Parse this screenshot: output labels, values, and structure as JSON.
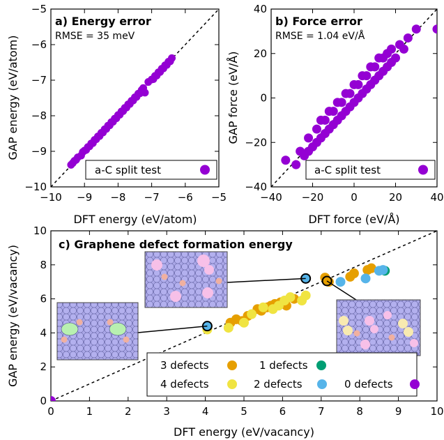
{
  "chart_data": [
    {
      "type": "scatter",
      "title": "a) Energy error",
      "annotation": "RMSE = 35 meV",
      "xlabel": "DFT energy (eV/atom)",
      "ylabel": "GAP energy (eV/atom)",
      "xlim": [
        -10,
        -5
      ],
      "ylim": [
        -10,
        -5
      ],
      "xticks": [
        "−10",
        "−9",
        "−8",
        "−7",
        "−6",
        "−5"
      ],
      "yticks": [
        "−10",
        "−9",
        "−8",
        "−7",
        "−6",
        "−5"
      ],
      "diagonal": true,
      "legend": "bottom-right",
      "series": [
        {
          "name": "a-C split test",
          "color": "#9400d3",
          "x": [
            -9.4,
            -9.35,
            -9.3,
            -9.25,
            -9.2,
            -9.1,
            -9.05,
            -9.0,
            -8.95,
            -8.9,
            -8.85,
            -8.8,
            -8.75,
            -8.7,
            -8.65,
            -8.6,
            -8.55,
            -8.5,
            -8.45,
            -8.4,
            -8.35,
            -8.3,
            -8.25,
            -8.2,
            -8.15,
            -8.1,
            -8.05,
            -8.0,
            -7.95,
            -7.9,
            -7.85,
            -7.8,
            -7.75,
            -7.7,
            -7.65,
            -7.6,
            -7.55,
            -7.5,
            -7.45,
            -7.4,
            -7.35,
            -7.3,
            -7.25,
            -7.2,
            -7.1,
            -7.0,
            -6.95,
            -6.9,
            -6.85,
            -6.8,
            -6.75,
            -6.7,
            -6.65,
            -6.6,
            -6.55,
            -6.5,
            -6.45,
            -6.4
          ],
          "y": [
            -9.38,
            -9.33,
            -9.27,
            -9.24,
            -9.17,
            -9.12,
            -9.02,
            -8.98,
            -8.96,
            -8.88,
            -8.86,
            -8.78,
            -8.77,
            -8.68,
            -8.66,
            -8.58,
            -8.57,
            -8.48,
            -8.47,
            -8.38,
            -8.37,
            -8.28,
            -8.27,
            -8.18,
            -8.17,
            -8.08,
            -8.07,
            -7.98,
            -7.97,
            -7.88,
            -7.87,
            -7.78,
            -7.77,
            -7.68,
            -7.67,
            -7.58,
            -7.57,
            -7.48,
            -7.47,
            -7.38,
            -7.37,
            -7.28,
            -7.22,
            -7.35,
            -7.05,
            -6.98,
            -6.97,
            -6.88,
            -6.87,
            -6.78,
            -6.77,
            -6.68,
            -6.67,
            -6.58,
            -6.57,
            -6.48,
            -6.47,
            -6.38
          ]
        }
      ]
    },
    {
      "type": "scatter",
      "title": "b) Force error",
      "annotation": "RMSE = 1.04 eV/Å",
      "xlabel": "DFT force (eV/Å)",
      "ylabel": "GAP force (eV/Å)",
      "xlim": [
        -40,
        40
      ],
      "ylim": [
        -40,
        40
      ],
      "xticks": [
        "−40",
        "−20",
        "0",
        "20",
        "40"
      ],
      "yticks": [
        "−40",
        "−20",
        "0",
        "20",
        "40"
      ],
      "diagonal": true,
      "legend": "bottom-right",
      "series": [
        {
          "name": "a-C split test",
          "color": "#9400d3",
          "x": [
            -33,
            -28,
            -26,
            -24,
            -22,
            -20,
            -18,
            -16,
            -14,
            -12,
            -10,
            -8,
            -6,
            -4,
            -2,
            0,
            2,
            4,
            6,
            8,
            10,
            12,
            14,
            16,
            18,
            20,
            22,
            24,
            26,
            -22,
            -18,
            -14,
            -10,
            -6,
            -2,
            2,
            6,
            10,
            14,
            18,
            -16,
            -12,
            -8,
            -4,
            0,
            4,
            8,
            12,
            16,
            30,
            40
          ],
          "y": [
            -28,
            -30,
            -24,
            -26,
            -18,
            -22,
            -14,
            -18,
            -10,
            -14,
            -6,
            -10,
            -2,
            -6,
            2,
            -2,
            6,
            2,
            10,
            6,
            14,
            10,
            18,
            14,
            22,
            18,
            24,
            22,
            27,
            -24,
            -20,
            -16,
            -12,
            -8,
            -4,
            0,
            4,
            8,
            12,
            16,
            -10,
            -6,
            -2,
            2,
            6,
            10,
            14,
            18,
            20,
            31,
            31
          ]
        }
      ]
    },
    {
      "type": "scatter",
      "title": "c) Graphene defect formation energy",
      "xlabel": "DFT energy (eV/vacancy)",
      "ylabel": "GAP energy (eV/vacancy)",
      "xlim": [
        0,
        10
      ],
      "ylim": [
        0,
        10
      ],
      "xticks": [
        "0",
        "1",
        "2",
        "3",
        "4",
        "5",
        "6",
        "7",
        "8",
        "9",
        "10"
      ],
      "yticks": [
        "0",
        "2",
        "4",
        "6",
        "8",
        "10"
      ],
      "diagonal": true,
      "legend": "bottom",
      "series": [
        {
          "name": "3 defects",
          "color": "#e69f00",
          "x": [
            4.65,
            4.8,
            4.95,
            5.1,
            5.35,
            5.45,
            5.6,
            5.7,
            5.8,
            5.95,
            6.1,
            6.3,
            7.1,
            7.2,
            7.75,
            7.85,
            8.2,
            8.3
          ],
          "y": [
            4.6,
            4.8,
            4.7,
            5.0,
            5.4,
            5.3,
            5.5,
            5.6,
            5.7,
            5.8,
            5.6,
            6.0,
            7.25,
            7.0,
            7.3,
            7.5,
            7.7,
            7.8
          ]
        },
        {
          "name": "4 defects",
          "color": "#f0e442",
          "x": [
            4.05,
            4.6,
            5.0,
            5.2,
            5.5,
            5.75,
            5.9,
            6.05,
            6.2,
            6.5,
            6.6
          ],
          "y": [
            4.2,
            4.3,
            4.6,
            5.1,
            5.5,
            5.4,
            5.6,
            5.9,
            6.1,
            5.9,
            6.2
          ]
        },
        {
          "name": "1 defects",
          "color": "#009e73",
          "x": [
            8.65
          ],
          "y": [
            7.65
          ]
        },
        {
          "name": "2 defects",
          "color": "#56b4e9",
          "x": [
            7.5,
            8.15,
            8.5,
            8.6
          ],
          "y": [
            7.0,
            7.2,
            7.65,
            7.7
          ]
        },
        {
          "name": "0 defects",
          "color": "#9400d3",
          "x": [
            0
          ],
          "y": [
            0
          ]
        }
      ],
      "highlighted": [
        {
          "x": 4.05,
          "y": 4.4,
          "color": "#56b4e9"
        },
        {
          "x": 6.6,
          "y": 7.2,
          "color": "#56b4e9"
        },
        {
          "x": 7.15,
          "y": 7.05,
          "color": "#e69f00"
        }
      ]
    }
  ]
}
